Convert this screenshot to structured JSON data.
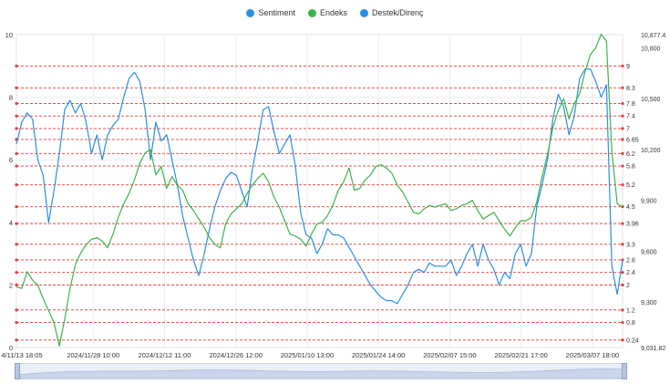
{
  "chart_data": {
    "type": "line",
    "legend": [
      {
        "name": "Sentiment",
        "color": "#2b8fe0"
      },
      {
        "name": "Endeks",
        "color": "#3cb34a"
      },
      {
        "name": "Destek/Direnç",
        "color": "#2b8fe0"
      }
    ],
    "legend_position": "top-center",
    "x_tick_labels": [
      "4/11/13 18:05",
      "2024/11/28 10:00",
      "2024/12/12 11:00",
      "2024/12/26 12:00",
      "2025/01/10 13:00",
      "2025/01/24 14:00",
      "2025/02/07 15:00",
      "2025/02/21 17:00",
      "2025/03/07 18:00"
    ],
    "y_left": {
      "ticks": [
        "0",
        "2",
        "4",
        "6",
        "8",
        "10"
      ],
      "range": [
        0,
        10
      ]
    },
    "y_right": {
      "ticks": [
        "9,031.82",
        "9,300",
        "9,600",
        "9,900",
        "10,200",
        "10,500",
        "10,800",
        "10,877.4"
      ],
      "range": [
        9031.82,
        10877.4
      ]
    },
    "support_resistance_levels": [
      "9",
      "8.3",
      "7.8",
      "7.4",
      "7",
      "6.65",
      "6.2",
      "5.8",
      "5.2",
      "4.5",
      "3.96",
      "3.3",
      "2.8",
      "2.4",
      "2",
      "1.2",
      "0.8",
      "0.24"
    ],
    "level_color": "#e53935",
    "series": [
      {
        "name": "Sentiment",
        "axis": "left",
        "color": "#2b8fe0",
        "values": [
          6.5,
          7.2,
          7.5,
          7.3,
          6.0,
          5.5,
          4.0,
          5.0,
          6.2,
          7.6,
          7.9,
          7.5,
          7.8,
          7.2,
          6.2,
          6.8,
          6.0,
          6.8,
          7.1,
          7.3,
          8.0,
          8.6,
          8.8,
          8.5,
          7.6,
          6.0,
          7.2,
          6.6,
          6.8,
          6.0,
          5.2,
          4.2,
          3.5,
          2.8,
          2.3,
          3.0,
          3.8,
          4.5,
          5.0,
          5.4,
          5.6,
          5.5,
          5.0,
          4.5,
          5.7,
          6.6,
          7.6,
          7.7,
          6.9,
          6.2,
          6.5,
          6.8,
          5.8,
          4.3,
          3.6,
          3.5,
          3.0,
          3.3,
          3.8,
          3.6,
          3.6,
          3.5,
          3.2,
          2.9,
          2.6,
          2.3,
          2.0,
          1.8,
          1.6,
          1.5,
          1.5,
          1.4,
          1.7,
          2.0,
          2.4,
          2.5,
          2.4,
          2.7,
          2.6,
          2.6,
          2.6,
          2.8,
          2.3,
          2.6,
          3.0,
          3.3,
          2.6,
          3.3,
          2.8,
          2.5,
          2.0,
          2.4,
          2.2,
          3.0,
          3.3,
          2.6,
          3.0,
          4.5,
          5.2,
          6.0,
          7.3,
          8.1,
          7.7,
          6.8,
          7.4,
          8.6,
          8.9,
          8.9,
          8.5,
          8.0,
          8.4,
          2.6,
          1.7,
          2.8
        ]
      },
      {
        "name": "Endeks",
        "axis": "right",
        "color": "#3cb34a",
        "values": [
          9390,
          9380,
          9480,
          9430,
          9400,
          9320,
          9250,
          9180,
          9040,
          9200,
          9380,
          9520,
          9590,
          9640,
          9670,
          9680,
          9660,
          9620,
          9700,
          9800,
          9880,
          9940,
          10020,
          10120,
          10180,
          10200,
          10050,
          10100,
          9970,
          10040,
          9990,
          9960,
          9880,
          9840,
          9790,
          9740,
          9680,
          9640,
          9620,
          9760,
          9820,
          9850,
          9880,
          9940,
          9990,
          10030,
          10060,
          10010,
          9920,
          9860,
          9780,
          9700,
          9690,
          9670,
          9630,
          9700,
          9760,
          9770,
          9810,
          9870,
          9960,
          10010,
          10090,
          9960,
          9970,
          10020,
          10050,
          10100,
          10110,
          10090,
          10060,
          9990,
          9950,
          9890,
          9830,
          9820,
          9850,
          9870,
          9860,
          9870,
          9880,
          9840,
          9850,
          9870,
          9880,
          9900,
          9840,
          9790,
          9810,
          9830,
          9780,
          9730,
          9690,
          9740,
          9780,
          9780,
          9800,
          9890,
          10040,
          10170,
          10330,
          10430,
          10500,
          10380,
          10470,
          10530,
          10660,
          10760,
          10800,
          10880,
          10840,
          10190,
          9880,
          9860
        ]
      }
    ]
  }
}
